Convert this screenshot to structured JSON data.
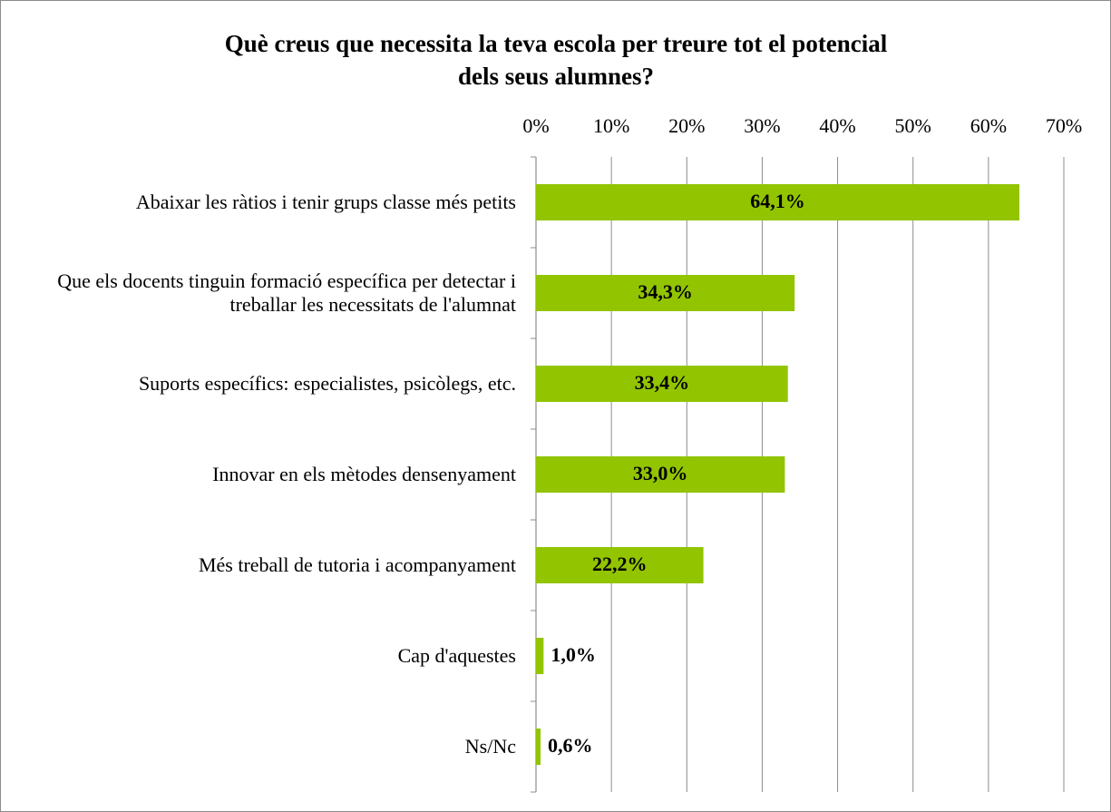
{
  "chart_data": {
    "type": "bar",
    "orientation": "horizontal",
    "title": [
      "Què creus que necessita la teva escola per treure tot el potencial",
      "dels seus alumnes?"
    ],
    "categories": [
      "Abaixar les ràtios i tenir grups classe més petits",
      "Que els docents tinguin formació específica per detectar i treballar les necessitats de l'alumnat",
      "Suports específics: especialistes, psicòlegs, etc.",
      "Innovar en els mètodes densenyament",
      "Més treball de tutoria i acompanyament",
      "Cap d'aquestes",
      "Ns/Nc"
    ],
    "values": [
      64.1,
      34.3,
      33.4,
      33.0,
      22.2,
      1.0,
      0.6
    ],
    "value_labels": [
      "64,1%",
      "34,3%",
      "33,4%",
      "33,0%",
      "22,2%",
      "1,0%",
      "0,6%"
    ],
    "color": "#92c400",
    "xlim": [
      0,
      70
    ],
    "xticks": [
      {
        "value": 0,
        "label": "0%"
      },
      {
        "value": 10,
        "label": "10%"
      },
      {
        "value": 20,
        "label": "20%"
      },
      {
        "value": 30,
        "label": "30%"
      },
      {
        "value": 40,
        "label": "40%"
      },
      {
        "value": 50,
        "label": "50%"
      },
      {
        "value": 60,
        "label": "60%"
      },
      {
        "value": 70,
        "label": "70%"
      }
    ],
    "grid": true
  }
}
